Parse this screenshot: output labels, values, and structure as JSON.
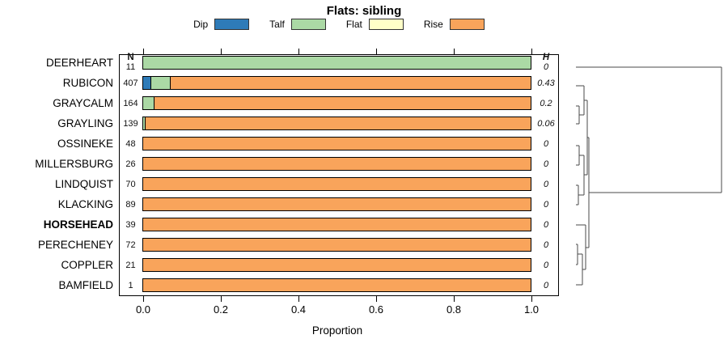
{
  "title": "Flats: sibling",
  "legend": {
    "items": [
      {
        "label": "Dip",
        "color": "#2e7bb8"
      },
      {
        "label": "Talf",
        "color": "#abd9a5"
      },
      {
        "label": "Flat",
        "color": "#ffffc8"
      },
      {
        "label": "Rise",
        "color": "#f9a45b"
      }
    ]
  },
  "columns": {
    "n_header": "N",
    "h_header": "H"
  },
  "axis": {
    "label": "Proportion",
    "ticks": [
      "0.0",
      "0.2",
      "0.4",
      "0.6",
      "0.8",
      "1.0"
    ],
    "min": 0,
    "max": 1
  },
  "chart_data": {
    "type": "bar",
    "stacked": true,
    "orientation": "horizontal",
    "title": "Flats: sibling",
    "xlabel": "Proportion",
    "xlim": [
      0,
      1
    ],
    "series_order": [
      "Dip",
      "Talf",
      "Flat",
      "Rise"
    ],
    "rows": [
      {
        "label": "DEERHEART",
        "n": "11",
        "h": "0",
        "bold": false,
        "segments": {
          "Dip": 0,
          "Talf": 1.0,
          "Flat": 0,
          "Rise": 0
        }
      },
      {
        "label": "RUBICON",
        "n": "407",
        "h": "0.43",
        "bold": false,
        "segments": {
          "Dip": 0.02,
          "Talf": 0.05,
          "Flat": 0,
          "Rise": 0.93
        }
      },
      {
        "label": "GRAYCALM",
        "n": "164",
        "h": "0.2",
        "bold": false,
        "segments": {
          "Dip": 0,
          "Talf": 0.03,
          "Flat": 0,
          "Rise": 0.97
        }
      },
      {
        "label": "GRAYLING",
        "n": "139",
        "h": "0.06",
        "bold": false,
        "segments": {
          "Dip": 0,
          "Talf": 0.007,
          "Flat": 0,
          "Rise": 0.993
        }
      },
      {
        "label": "OSSINEKE",
        "n": "48",
        "h": "0",
        "bold": false,
        "segments": {
          "Dip": 0,
          "Talf": 0,
          "Flat": 0,
          "Rise": 1.0
        }
      },
      {
        "label": "MILLERSBURG",
        "n": "26",
        "h": "0",
        "bold": false,
        "segments": {
          "Dip": 0,
          "Talf": 0,
          "Flat": 0,
          "Rise": 1.0
        }
      },
      {
        "label": "LINDQUIST",
        "n": "70",
        "h": "0",
        "bold": false,
        "segments": {
          "Dip": 0,
          "Talf": 0,
          "Flat": 0,
          "Rise": 1.0
        }
      },
      {
        "label": "KLACKING",
        "n": "89",
        "h": "0",
        "bold": false,
        "segments": {
          "Dip": 0,
          "Talf": 0,
          "Flat": 0,
          "Rise": 1.0
        }
      },
      {
        "label": "HORSEHEAD",
        "n": "39",
        "h": "0",
        "bold": true,
        "segments": {
          "Dip": 0,
          "Talf": 0,
          "Flat": 0,
          "Rise": 1.0
        }
      },
      {
        "label": "PERECHENEY",
        "n": "72",
        "h": "0",
        "bold": false,
        "segments": {
          "Dip": 0,
          "Talf": 0,
          "Flat": 0,
          "Rise": 1.0
        }
      },
      {
        "label": "COPPLER",
        "n": "21",
        "h": "0",
        "bold": false,
        "segments": {
          "Dip": 0,
          "Talf": 0,
          "Flat": 0,
          "Rise": 1.0
        }
      },
      {
        "label": "BAMFIELD",
        "n": "1",
        "h": "0",
        "bold": false,
        "segments": {
          "Dip": 0,
          "Talf": 0,
          "Flat": 0,
          "Rise": 1.0
        }
      }
    ]
  },
  "dendrogram": {
    "line_color": "#4a4a4a",
    "segments": [
      [
        22,
        33,
        202,
        33
      ],
      [
        202,
        33,
        202,
        188
      ],
      [
        38,
        188,
        202,
        188
      ],
      [
        38,
        120,
        38,
        256
      ],
      [
        36,
        120,
        38,
        120
      ],
      [
        36,
        74,
        36,
        166
      ],
      [
        32,
        74,
        36,
        74
      ],
      [
        32,
        56,
        32,
        92
      ],
      [
        22,
        56,
        32,
        56
      ],
      [
        26,
        92,
        32,
        92
      ],
      [
        26,
        81,
        26,
        103
      ],
      [
        22,
        81,
        26,
        81
      ],
      [
        22,
        103,
        26,
        103
      ],
      [
        32,
        166,
        36,
        166
      ],
      [
        32,
        142,
        32,
        191
      ],
      [
        26,
        142,
        32,
        142
      ],
      [
        26,
        130,
        26,
        154
      ],
      [
        22,
        130,
        26,
        130
      ],
      [
        22,
        154,
        26,
        154
      ],
      [
        25,
        191,
        32,
        191
      ],
      [
        25,
        179,
        25,
        203
      ],
      [
        22,
        179,
        25,
        179
      ],
      [
        22,
        203,
        25,
        203
      ],
      [
        34,
        256,
        38,
        256
      ],
      [
        34,
        228,
        34,
        283
      ],
      [
        22,
        228,
        34,
        228
      ],
      [
        30,
        283,
        34,
        283
      ],
      [
        30,
        264,
        30,
        302
      ],
      [
        24,
        264,
        30,
        264
      ],
      [
        24,
        252,
        24,
        277
      ],
      [
        22,
        252,
        24,
        252
      ],
      [
        22,
        277,
        24,
        277
      ],
      [
        22,
        302,
        30,
        302
      ]
    ]
  }
}
